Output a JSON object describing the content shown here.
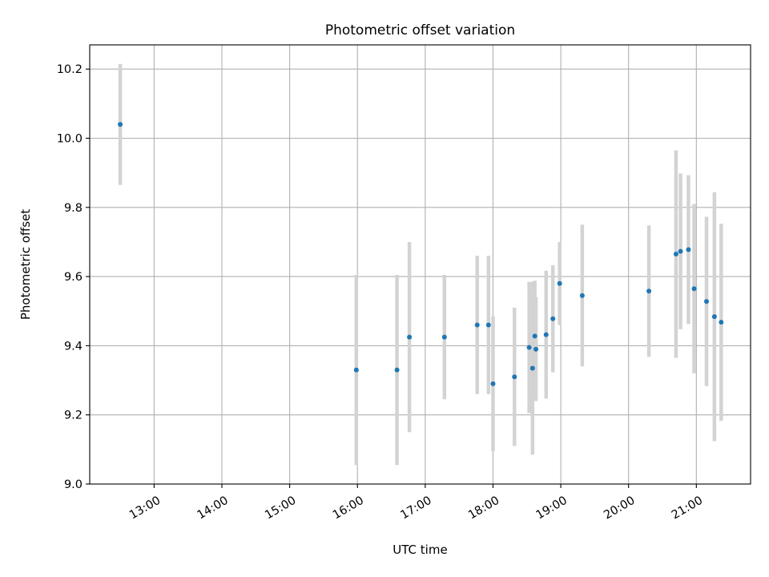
{
  "chart_data": {
    "type": "scatter",
    "title": "Photometric offset variation",
    "xlabel": "UTC time",
    "ylabel": "Photometric offset",
    "x_unit": "hours (UTC, same day)",
    "xlim": [
      "12:03",
      "21:48"
    ],
    "ylim": [
      9.0,
      10.27
    ],
    "x_ticks": [
      "13:00",
      "14:00",
      "15:00",
      "16:00",
      "17:00",
      "18:00",
      "19:00",
      "20:00",
      "21:00"
    ],
    "y_ticks": [
      9.0,
      9.2,
      9.4,
      9.6,
      9.8,
      10.0,
      10.2
    ],
    "grid": true,
    "marker_color": "#1f77b4",
    "errorbar_color": "#d3d3d3",
    "series": [
      {
        "points": [
          {
            "time": "12:30",
            "y": 10.04,
            "err": 0.175
          },
          {
            "time": "15:59",
            "y": 9.33,
            "err": 0.275
          },
          {
            "time": "16:35",
            "y": 9.33,
            "err": 0.275
          },
          {
            "time": "16:46",
            "y": 9.425,
            "err": 0.275
          },
          {
            "time": "17:17",
            "y": 9.425,
            "err": 0.18
          },
          {
            "time": "17:46",
            "y": 9.46,
            "err": 0.2
          },
          {
            "time": "17:56",
            "y": 9.46,
            "err": 0.2
          },
          {
            "time": "18:00",
            "y": 9.29,
            "err": 0.195
          },
          {
            "time": "18:19",
            "y": 9.31,
            "err": 0.2
          },
          {
            "time": "18:32",
            "y": 9.395,
            "err": 0.19
          },
          {
            "time": "18:35",
            "y": 9.335,
            "err": 0.25
          },
          {
            "time": "18:37",
            "y": 9.428,
            "err": 0.16
          },
          {
            "time": "18:38",
            "y": 9.39,
            "err": 0.15
          },
          {
            "time": "18:47",
            "y": 9.432,
            "err": 0.185
          },
          {
            "time": "18:53",
            "y": 9.478,
            "err": 0.155
          },
          {
            "time": "18:59",
            "y": 9.58,
            "err": 0.12
          },
          {
            "time": "19:19",
            "y": 9.545,
            "err": 0.205
          },
          {
            "time": "20:18",
            "y": 9.558,
            "err": 0.19
          },
          {
            "time": "20:42",
            "y": 9.665,
            "err": 0.3
          },
          {
            "time": "20:46",
            "y": 9.673,
            "err": 0.225
          },
          {
            "time": "20:53",
            "y": 9.678,
            "err": 0.215
          },
          {
            "time": "20:58",
            "y": 9.565,
            "err": 0.245
          },
          {
            "time": "21:09",
            "y": 9.528,
            "err": 0.245
          },
          {
            "time": "21:16",
            "y": 9.484,
            "err": 0.36
          },
          {
            "time": "21:22",
            "y": 9.468,
            "err": 0.285
          }
        ]
      }
    ]
  }
}
